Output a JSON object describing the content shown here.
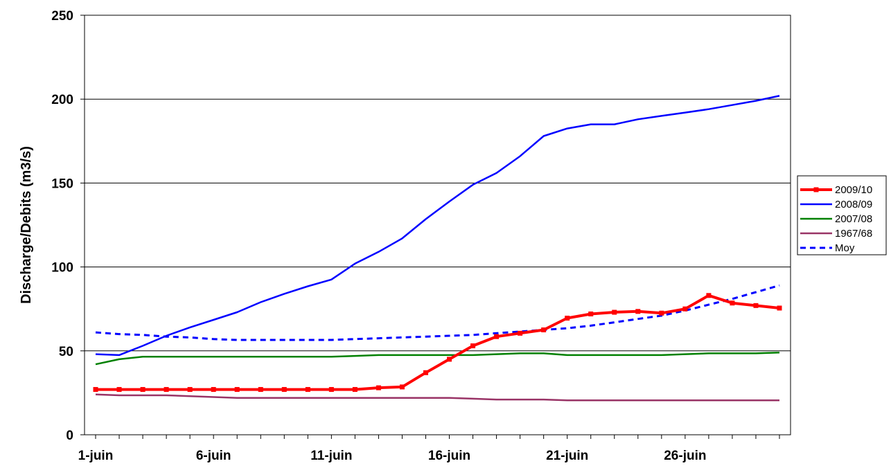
{
  "chart_data": {
    "type": "line",
    "title": "",
    "xlabel": "",
    "ylabel": "Discharge/Debits (m3/s)",
    "ylim": [
      0,
      250
    ],
    "yticks": [
      0,
      50,
      100,
      150,
      200,
      250
    ],
    "ytick_labels": [
      "0",
      "50",
      "100",
      "150",
      "200",
      "250"
    ],
    "x_day_range": [
      1,
      30
    ],
    "xtick_days": [
      1,
      6,
      11,
      16,
      21,
      26
    ],
    "xtick_labels": [
      "1-juin",
      "6-juin",
      "11-juin",
      "16-juin",
      "21-juin",
      "26-juin"
    ],
    "grid": "horizontal",
    "legend_position": "right",
    "x": [
      1,
      2,
      3,
      4,
      5,
      6,
      7,
      8,
      9,
      10,
      11,
      12,
      13,
      14,
      15,
      16,
      17,
      18,
      19,
      20,
      21,
      22,
      23,
      24,
      25,
      26,
      27,
      28,
      29,
      30
    ],
    "series": [
      {
        "name": "2009/10",
        "color": "#ff0000",
        "style": "solid-markers",
        "values": [
          27,
          27,
          27,
          27,
          27,
          27,
          27,
          27,
          27,
          27,
          27,
          27,
          28,
          28.5,
          37,
          45,
          53,
          58.5,
          60.5,
          62.5,
          69.5,
          72,
          73,
          73.5,
          72.5,
          75,
          83,
          78.5,
          77,
          75.5
        ]
      },
      {
        "name": "2008/09",
        "color": "#0000ff",
        "style": "solid",
        "values": [
          48,
          47.5,
          53,
          59,
          64,
          68.5,
          73,
          79,
          84,
          88.5,
          92.5,
          102,
          109,
          117,
          128.5,
          139,
          149,
          156,
          166,
          178,
          182.5,
          185,
          185,
          188,
          190,
          192,
          194,
          196.5,
          199,
          202
        ]
      },
      {
        "name": "2007/08",
        "color": "#008000",
        "style": "solid",
        "values": [
          42,
          45,
          46.5,
          46.5,
          46.5,
          46.5,
          46.5,
          46.5,
          46.5,
          46.5,
          46.5,
          47,
          47.5,
          47.5,
          47.5,
          47.5,
          47.5,
          48,
          48.5,
          48.5,
          47.5,
          47.5,
          47.5,
          47.5,
          47.5,
          48,
          48.5,
          48.5,
          48.5,
          49
        ]
      },
      {
        "name": "1967/68",
        "color": "#993366",
        "style": "solid",
        "values": [
          24,
          23.5,
          23.5,
          23.5,
          23,
          22.5,
          22,
          22,
          22,
          22,
          22,
          22,
          22,
          22,
          22,
          22,
          21.5,
          21,
          21,
          21,
          20.5,
          20.5,
          20.5,
          20.5,
          20.5,
          20.5,
          20.5,
          20.5,
          20.5,
          20.5
        ]
      },
      {
        "name": "Moy",
        "color": "#0000ff",
        "style": "dashed",
        "values": [
          61,
          60,
          59.5,
          58.5,
          58,
          57,
          56.5,
          56.5,
          56.5,
          56.5,
          56.5,
          57,
          57.5,
          58,
          58.5,
          59,
          59.5,
          60.5,
          61.5,
          62.5,
          63.5,
          65,
          67,
          69,
          71,
          74,
          77.5,
          81,
          85,
          89
        ]
      }
    ]
  }
}
